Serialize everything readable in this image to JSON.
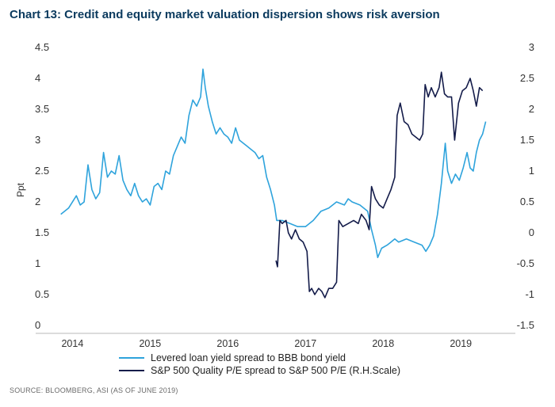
{
  "title": "Chart 13: Credit and equity market valuation dispersion shows risk aversion",
  "source": "SOURCE: BLOOMBERG, ASI (AS OF JUNE 2019)",
  "chart_data": {
    "type": "line",
    "ylabel": "Ppt",
    "xlim": [
      2013.7,
      2019.6
    ],
    "ylim_left": [
      0,
      4.5
    ],
    "ylim_right": [
      -1.5,
      3
    ],
    "x_ticks": [
      {
        "value": 2014,
        "label": "2014"
      },
      {
        "value": 2015,
        "label": "2015"
      },
      {
        "value": 2016,
        "label": "2016"
      },
      {
        "value": 2017,
        "label": "2017"
      },
      {
        "value": 2018,
        "label": "2018"
      },
      {
        "value": 2019,
        "label": "2019"
      }
    ],
    "y_ticks_left": [
      {
        "value": 4.5,
        "label": "4.5"
      },
      {
        "value": 4,
        "label": "4"
      },
      {
        "value": 3.5,
        "label": "3.5"
      },
      {
        "value": 3,
        "label": "3"
      },
      {
        "value": 2.5,
        "label": "2.5"
      },
      {
        "value": 2,
        "label": "2"
      },
      {
        "value": 1.5,
        "label": "1.5"
      },
      {
        "value": 1,
        "label": "1"
      },
      {
        "value": 0.5,
        "label": "0.5"
      },
      {
        "value": 0,
        "label": "0"
      }
    ],
    "y_ticks_right": [
      {
        "value": 3,
        "label": "3"
      },
      {
        "value": 2.5,
        "label": "2.5"
      },
      {
        "value": 2,
        "label": "2"
      },
      {
        "value": 1.5,
        "label": "1.5"
      },
      {
        "value": 1,
        "label": "1"
      },
      {
        "value": 0.5,
        "label": "0.5"
      },
      {
        "value": 0,
        "label": "0"
      },
      {
        "value": -0.5,
        "label": "-0.5"
      },
      {
        "value": -1,
        "label": "-1"
      },
      {
        "value": -1.5,
        "label": "-1.5"
      }
    ],
    "legend_position": "bottom",
    "series": [
      {
        "name": "Levered loan yield spread to BBB bond yield",
        "axis": "left",
        "color": "#2ea3dc",
        "points": [
          [
            2013.85,
            1.8
          ],
          [
            2013.95,
            1.9
          ],
          [
            2014.05,
            2.1
          ],
          [
            2014.1,
            1.95
          ],
          [
            2014.15,
            2.0
          ],
          [
            2014.2,
            2.6
          ],
          [
            2014.25,
            2.2
          ],
          [
            2014.3,
            2.05
          ],
          [
            2014.35,
            2.15
          ],
          [
            2014.4,
            2.8
          ],
          [
            2014.45,
            2.4
          ],
          [
            2014.5,
            2.5
          ],
          [
            2014.55,
            2.45
          ],
          [
            2014.6,
            2.75
          ],
          [
            2014.65,
            2.35
          ],
          [
            2014.7,
            2.2
          ],
          [
            2014.75,
            2.1
          ],
          [
            2014.8,
            2.3
          ],
          [
            2014.85,
            2.1
          ],
          [
            2014.9,
            2.0
          ],
          [
            2014.95,
            2.05
          ],
          [
            2015.0,
            1.95
          ],
          [
            2015.05,
            2.25
          ],
          [
            2015.1,
            2.3
          ],
          [
            2015.15,
            2.2
          ],
          [
            2015.2,
            2.5
          ],
          [
            2015.25,
            2.45
          ],
          [
            2015.3,
            2.75
          ],
          [
            2015.35,
            2.9
          ],
          [
            2015.4,
            3.05
          ],
          [
            2015.45,
            2.95
          ],
          [
            2015.5,
            3.4
          ],
          [
            2015.55,
            3.65
          ],
          [
            2015.6,
            3.55
          ],
          [
            2015.65,
            3.7
          ],
          [
            2015.68,
            4.15
          ],
          [
            2015.71,
            3.85
          ],
          [
            2015.75,
            3.55
          ],
          [
            2015.8,
            3.3
          ],
          [
            2015.85,
            3.1
          ],
          [
            2015.9,
            3.2
          ],
          [
            2015.95,
            3.1
          ],
          [
            2016.0,
            3.05
          ],
          [
            2016.05,
            2.95
          ],
          [
            2016.1,
            3.2
          ],
          [
            2016.15,
            3.0
          ],
          [
            2016.2,
            2.95
          ],
          [
            2016.25,
            2.9
          ],
          [
            2016.3,
            2.85
          ],
          [
            2016.35,
            2.8
          ],
          [
            2016.4,
            2.7
          ],
          [
            2016.45,
            2.75
          ],
          [
            2016.5,
            2.4
          ],
          [
            2016.55,
            2.2
          ],
          [
            2016.6,
            1.95
          ],
          [
            2016.63,
            1.7
          ],
          [
            2016.7,
            1.7
          ],
          [
            2016.8,
            1.65
          ],
          [
            2016.9,
            1.6
          ],
          [
            2017.0,
            1.6
          ],
          [
            2017.1,
            1.7
          ],
          [
            2017.2,
            1.85
          ],
          [
            2017.3,
            1.9
          ],
          [
            2017.4,
            2.0
          ],
          [
            2017.5,
            1.95
          ],
          [
            2017.55,
            2.05
          ],
          [
            2017.6,
            2.0
          ],
          [
            2017.7,
            1.95
          ],
          [
            2017.8,
            1.85
          ],
          [
            2017.85,
            1.55
          ],
          [
            2017.9,
            1.3
          ],
          [
            2017.93,
            1.1
          ],
          [
            2017.98,
            1.25
          ],
          [
            2018.05,
            1.3
          ],
          [
            2018.1,
            1.35
          ],
          [
            2018.15,
            1.4
          ],
          [
            2018.2,
            1.35
          ],
          [
            2018.3,
            1.4
          ],
          [
            2018.4,
            1.35
          ],
          [
            2018.5,
            1.3
          ],
          [
            2018.55,
            1.2
          ],
          [
            2018.6,
            1.3
          ],
          [
            2018.65,
            1.45
          ],
          [
            2018.7,
            1.8
          ],
          [
            2018.75,
            2.3
          ],
          [
            2018.8,
            2.95
          ],
          [
            2018.83,
            2.5
          ],
          [
            2018.88,
            2.3
          ],
          [
            2018.93,
            2.45
          ],
          [
            2018.98,
            2.35
          ],
          [
            2019.03,
            2.55
          ],
          [
            2019.08,
            2.8
          ],
          [
            2019.12,
            2.55
          ],
          [
            2019.16,
            2.5
          ],
          [
            2019.2,
            2.8
          ],
          [
            2019.24,
            3.0
          ],
          [
            2019.28,
            3.1
          ],
          [
            2019.32,
            3.3
          ]
        ]
      },
      {
        "name": "S&P 500 Quality P/E spread to S&P 500 P/E (R.H.Scale)",
        "axis": "right",
        "color": "#141c4a",
        "points": [
          [
            2016.62,
            -0.45
          ],
          [
            2016.64,
            -0.55
          ],
          [
            2016.67,
            0.2
          ],
          [
            2016.7,
            0.15
          ],
          [
            2016.75,
            0.2
          ],
          [
            2016.78,
            0.0
          ],
          [
            2016.82,
            -0.1
          ],
          [
            2016.87,
            0.05
          ],
          [
            2016.92,
            -0.1
          ],
          [
            2016.97,
            -0.15
          ],
          [
            2017.02,
            -0.3
          ],
          [
            2017.05,
            -0.95
          ],
          [
            2017.08,
            -0.9
          ],
          [
            2017.12,
            -1.0
          ],
          [
            2017.17,
            -0.9
          ],
          [
            2017.21,
            -0.95
          ],
          [
            2017.25,
            -1.05
          ],
          [
            2017.3,
            -0.9
          ],
          [
            2017.35,
            -0.9
          ],
          [
            2017.4,
            -0.8
          ],
          [
            2017.43,
            0.2
          ],
          [
            2017.48,
            0.1
          ],
          [
            2017.55,
            0.15
          ],
          [
            2017.62,
            0.2
          ],
          [
            2017.68,
            0.15
          ],
          [
            2017.72,
            0.3
          ],
          [
            2017.78,
            0.2
          ],
          [
            2017.82,
            0.05
          ],
          [
            2017.85,
            0.75
          ],
          [
            2017.9,
            0.55
          ],
          [
            2017.95,
            0.45
          ],
          [
            2018.0,
            0.4
          ],
          [
            2018.05,
            0.55
          ],
          [
            2018.1,
            0.7
          ],
          [
            2018.15,
            0.9
          ],
          [
            2018.18,
            1.9
          ],
          [
            2018.22,
            2.1
          ],
          [
            2018.27,
            1.8
          ],
          [
            2018.32,
            1.75
          ],
          [
            2018.37,
            1.6
          ],
          [
            2018.42,
            1.55
          ],
          [
            2018.47,
            1.5
          ],
          [
            2018.51,
            1.6
          ],
          [
            2018.54,
            2.4
          ],
          [
            2018.58,
            2.2
          ],
          [
            2018.62,
            2.35
          ],
          [
            2018.67,
            2.2
          ],
          [
            2018.72,
            2.35
          ],
          [
            2018.75,
            2.6
          ],
          [
            2018.79,
            2.25
          ],
          [
            2018.83,
            2.2
          ],
          [
            2018.88,
            2.2
          ],
          [
            2018.92,
            1.5
          ],
          [
            2018.97,
            2.1
          ],
          [
            2019.02,
            2.3
          ],
          [
            2019.07,
            2.35
          ],
          [
            2019.12,
            2.5
          ],
          [
            2019.16,
            2.3
          ],
          [
            2019.2,
            2.05
          ],
          [
            2019.24,
            2.35
          ],
          [
            2019.28,
            2.3
          ]
        ]
      }
    ]
  }
}
